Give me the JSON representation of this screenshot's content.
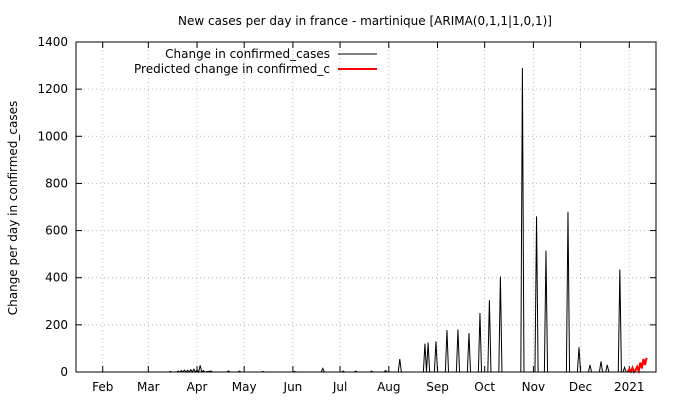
{
  "chart_data": {
    "type": "line",
    "title": "New cases per day in france - martinique [ARIMA(0,1,1|1,0,1)]",
    "xlabel": "",
    "ylabel": "Change per day in confirmed_cases",
    "ylim": [
      0,
      1400
    ],
    "xlim": [
      "2020-01-15",
      "2021-01-18"
    ],
    "y_ticks": [
      0,
      200,
      400,
      600,
      800,
      1000,
      1200,
      1400
    ],
    "x_ticks": [
      {
        "label": "Feb",
        "date": "2020-02-01"
      },
      {
        "label": "Mar",
        "date": "2020-03-01"
      },
      {
        "label": "Apr",
        "date": "2020-04-01"
      },
      {
        "label": "May",
        "date": "2020-05-01"
      },
      {
        "label": "Jun",
        "date": "2020-06-01"
      },
      {
        "label": "Jul",
        "date": "2020-07-01"
      },
      {
        "label": "Aug",
        "date": "2020-08-01"
      },
      {
        "label": "Sep",
        "date": "2020-09-01"
      },
      {
        "label": "Oct",
        "date": "2020-10-01"
      },
      {
        "label": "Nov",
        "date": "2020-11-01"
      },
      {
        "label": "Dec",
        "date": "2020-12-01"
      },
      {
        "label": "2021",
        "date": "2021-01-01"
      }
    ],
    "grid": true,
    "legend_position": "top-left",
    "series": [
      {
        "name": "Change in confirmed_cases",
        "color": "#000000",
        "points": [
          [
            "2020-03-14",
            0
          ],
          [
            "2020-03-15",
            2
          ],
          [
            "2020-03-16",
            0
          ],
          [
            "2020-03-19",
            0
          ],
          [
            "2020-03-20",
            4
          ],
          [
            "2020-03-21",
            0
          ],
          [
            "2020-03-22",
            6
          ],
          [
            "2020-03-23",
            0
          ],
          [
            "2020-03-24",
            8
          ],
          [
            "2020-03-25",
            0
          ],
          [
            "2020-03-26",
            7
          ],
          [
            "2020-03-27",
            0
          ],
          [
            "2020-03-28",
            10
          ],
          [
            "2020-03-29",
            0
          ],
          [
            "2020-03-30",
            12
          ],
          [
            "2020-03-31",
            0
          ],
          [
            "2020-04-01",
            8
          ],
          [
            "2020-04-02",
            0
          ],
          [
            "2020-04-03",
            28
          ],
          [
            "2020-04-04",
            0
          ],
          [
            "2020-04-05",
            6
          ],
          [
            "2020-04-06",
            0
          ],
          [
            "2020-04-10",
            4
          ],
          [
            "2020-04-11",
            0
          ],
          [
            "2020-04-20",
            0
          ],
          [
            "2020-04-21",
            5
          ],
          [
            "2020-04-22",
            0
          ],
          [
            "2020-04-27",
            0
          ],
          [
            "2020-04-28",
            4
          ],
          [
            "2020-04-29",
            0
          ],
          [
            "2020-05-12",
            0
          ],
          [
            "2020-05-13",
            2
          ],
          [
            "2020-05-14",
            0
          ],
          [
            "2020-06-01",
            0
          ],
          [
            "2020-06-02",
            2
          ],
          [
            "2020-06-03",
            0
          ],
          [
            "2020-06-19",
            0
          ],
          [
            "2020-06-20",
            15
          ],
          [
            "2020-06-21",
            0
          ],
          [
            "2020-07-02",
            0
          ],
          [
            "2020-07-03",
            4
          ],
          [
            "2020-07-04",
            0
          ],
          [
            "2020-07-10",
            0
          ],
          [
            "2020-07-11",
            4
          ],
          [
            "2020-07-12",
            0
          ],
          [
            "2020-07-20",
            0
          ],
          [
            "2020-07-21",
            4
          ],
          [
            "2020-07-22",
            0
          ],
          [
            "2020-07-29",
            0
          ],
          [
            "2020-07-30",
            6
          ],
          [
            "2020-07-31",
            0
          ],
          [
            "2020-08-07",
            0
          ],
          [
            "2020-08-08",
            55
          ],
          [
            "2020-08-09",
            0
          ],
          [
            "2020-08-23",
            0
          ],
          [
            "2020-08-24",
            120
          ],
          [
            "2020-08-25",
            0
          ],
          [
            "2020-08-26",
            125
          ],
          [
            "2020-08-27",
            0
          ],
          [
            "2020-08-30",
            0
          ],
          [
            "2020-08-31",
            130
          ],
          [
            "2020-09-01",
            0
          ],
          [
            "2020-09-06",
            0
          ],
          [
            "2020-09-07",
            178
          ],
          [
            "2020-09-08",
            0
          ],
          [
            "2020-09-13",
            0
          ],
          [
            "2020-09-14",
            180
          ],
          [
            "2020-09-15",
            0
          ],
          [
            "2020-09-20",
            0
          ],
          [
            "2020-09-21",
            165
          ],
          [
            "2020-09-22",
            0
          ],
          [
            "2020-09-27",
            0
          ],
          [
            "2020-09-28",
            250
          ],
          [
            "2020-09-29",
            0
          ],
          [
            "2020-10-03",
            0
          ],
          [
            "2020-10-04",
            305
          ],
          [
            "2020-10-05",
            0
          ],
          [
            "2020-10-10",
            0
          ],
          [
            "2020-10-11",
            405
          ],
          [
            "2020-10-12",
            0
          ],
          [
            "2020-10-24",
            0
          ],
          [
            "2020-10-25",
            1290
          ],
          [
            "2020-10-26",
            0
          ],
          [
            "2020-11-02",
            0
          ],
          [
            "2020-11-03",
            660
          ],
          [
            "2020-11-04",
            0
          ],
          [
            "2020-11-08",
            0
          ],
          [
            "2020-11-09",
            515
          ],
          [
            "2020-11-10",
            0
          ],
          [
            "2020-11-22",
            0
          ],
          [
            "2020-11-23",
            680
          ],
          [
            "2020-11-24",
            0
          ],
          [
            "2020-11-29",
            0
          ],
          [
            "2020-11-30",
            105
          ],
          [
            "2020-12-01",
            0
          ],
          [
            "2020-12-06",
            0
          ],
          [
            "2020-12-07",
            30
          ],
          [
            "2020-12-08",
            0
          ],
          [
            "2020-12-13",
            0
          ],
          [
            "2020-12-14",
            45
          ],
          [
            "2020-12-15",
            0
          ],
          [
            "2020-12-17",
            0
          ],
          [
            "2020-12-18",
            30
          ],
          [
            "2020-12-19",
            0
          ],
          [
            "2020-12-25",
            0
          ],
          [
            "2020-12-26",
            435
          ],
          [
            "2020-12-27",
            0
          ],
          [
            "2020-12-28",
            0
          ],
          [
            "2020-12-29",
            20
          ],
          [
            "2020-12-30",
            0
          ]
        ]
      },
      {
        "name": "Predicted change in confirmed_c",
        "color": "#ff0000",
        "points": [
          [
            "2020-12-31",
            0
          ],
          [
            "2021-01-01",
            12
          ],
          [
            "2021-01-02",
            2
          ],
          [
            "2021-01-03",
            18
          ],
          [
            "2021-01-04",
            0
          ],
          [
            "2021-01-05",
            8
          ],
          [
            "2021-01-06",
            22
          ],
          [
            "2021-01-07",
            5
          ],
          [
            "2021-01-08",
            40
          ],
          [
            "2021-01-09",
            15
          ],
          [
            "2021-01-10",
            55
          ],
          [
            "2021-01-11",
            30
          ],
          [
            "2021-01-12",
            60
          ]
        ]
      }
    ]
  }
}
